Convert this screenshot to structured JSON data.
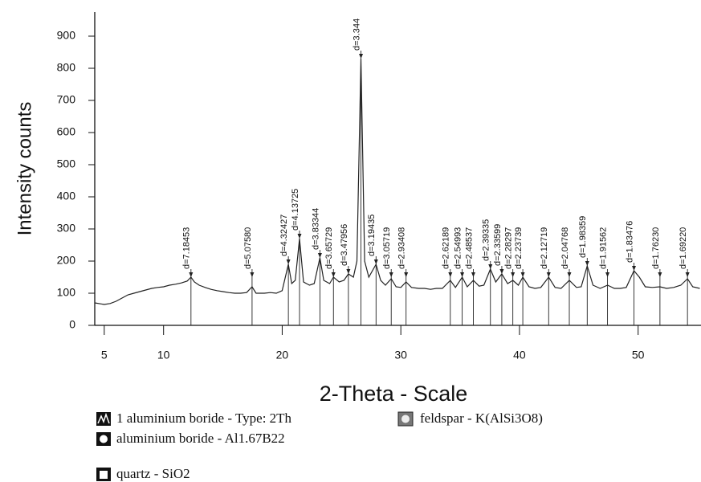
{
  "chart_data": {
    "type": "line",
    "xlabel": "2-Theta - Scale",
    "ylabel": "Intensity counts",
    "xlim": [
      4.2,
      55.3
    ],
    "ylim": [
      0,
      975
    ],
    "xticks": [
      5,
      10,
      20,
      30,
      40,
      50
    ],
    "yticks": [
      0,
      100,
      200,
      300,
      400,
      500,
      600,
      700,
      800,
      900
    ],
    "series": [
      {
        "color": "#222222",
        "x": [
          4.2,
          5,
          5.5,
          6,
          6.5,
          7,
          7.5,
          8,
          8.5,
          9,
          9.5,
          10,
          10.5,
          11,
          11.5,
          12,
          12.31,
          12.6,
          13,
          13.5,
          14,
          14.5,
          15,
          15.5,
          16,
          16.5,
          17,
          17.46,
          17.8,
          18.5,
          19,
          19.5,
          20,
          20.52,
          20.8,
          21.1,
          21.46,
          21.8,
          22.3,
          22.7,
          23.18,
          23.5,
          24,
          24.32,
          24.8,
          25.2,
          25.58,
          26,
          26.3,
          26.64,
          26.95,
          27.3,
          27.91,
          28.3,
          28.7,
          29.19,
          29.6,
          30,
          30.44,
          30.9,
          31.5,
          32,
          32.5,
          33,
          33.5,
          34.17,
          34.6,
          35.17,
          35.6,
          36.11,
          36.6,
          37,
          37.55,
          38,
          38.51,
          39,
          39.44,
          39.9,
          40.28,
          40.8,
          41.3,
          41.8,
          42.46,
          43,
          43.5,
          44.2,
          44.8,
          45.2,
          45.71,
          46.2,
          46.8,
          47.42,
          48,
          48.5,
          49,
          49.65,
          50.1,
          50.6,
          51.2,
          51.84,
          52.4,
          53,
          53.6,
          54.16,
          54.6,
          55.2
        ],
        "values": [
          70,
          65,
          68,
          75,
          85,
          95,
          100,
          105,
          110,
          115,
          118,
          120,
          125,
          128,
          132,
          138,
          150,
          135,
          125,
          118,
          112,
          108,
          105,
          102,
          100,
          100,
          102,
          120,
          100,
          100,
          102,
          100,
          108,
          190,
          130,
          140,
          270,
          135,
          125,
          130,
          210,
          140,
          130,
          150,
          135,
          140,
          160,
          150,
          200,
          830,
          200,
          150,
          190,
          140,
          125,
          145,
          120,
          118,
          135,
          118,
          115,
          115,
          112,
          115,
          115,
          140,
          118,
          150,
          120,
          140,
          122,
          125,
          175,
          135,
          160,
          130,
          140,
          125,
          150,
          120,
          115,
          118,
          150,
          118,
          115,
          140,
          118,
          120,
          185,
          125,
          115,
          125,
          115,
          115,
          118,
          170,
          150,
          120,
          118,
          120,
          115,
          118,
          125,
          145,
          120,
          115
        ]
      }
    ],
    "peaks": {
      "x": [
        12.31,
        17.46,
        20.52,
        21.46,
        23.18,
        24.32,
        25.58,
        26.64,
        27.91,
        29.19,
        30.44,
        34.17,
        35.17,
        36.11,
        37.55,
        38.51,
        39.44,
        40.28,
        42.46,
        44.2,
        45.71,
        47.42,
        49.65,
        51.84,
        54.16
      ],
      "labels": [
        "d=7.18453",
        "d=5.07580",
        "d=4.32427",
        "d=4.13725",
        "d=3.83344",
        "d=3.65729",
        "d=3.47956",
        "d=3.344",
        "d=3.19435",
        "d=3.05719",
        "d=2.93408",
        "d=2.62189",
        "d=2.54993",
        "d=2.48537",
        "d=2.39335",
        "d=2.33599",
        "d=2.28297",
        "d=2.23739",
        "d=2.12719",
        "d=2.04768",
        "d=1.98359",
        "d=1.91562",
        "d=1.83476",
        "d=1.76230",
        "d=1.69220"
      ]
    },
    "legend": [
      "1 aluminium boride - Type: 2Th",
      "aluminium boride - Al1.67B22",
      "quartz - SiO2",
      "feldspar - K(AlSi3O8)"
    ]
  }
}
